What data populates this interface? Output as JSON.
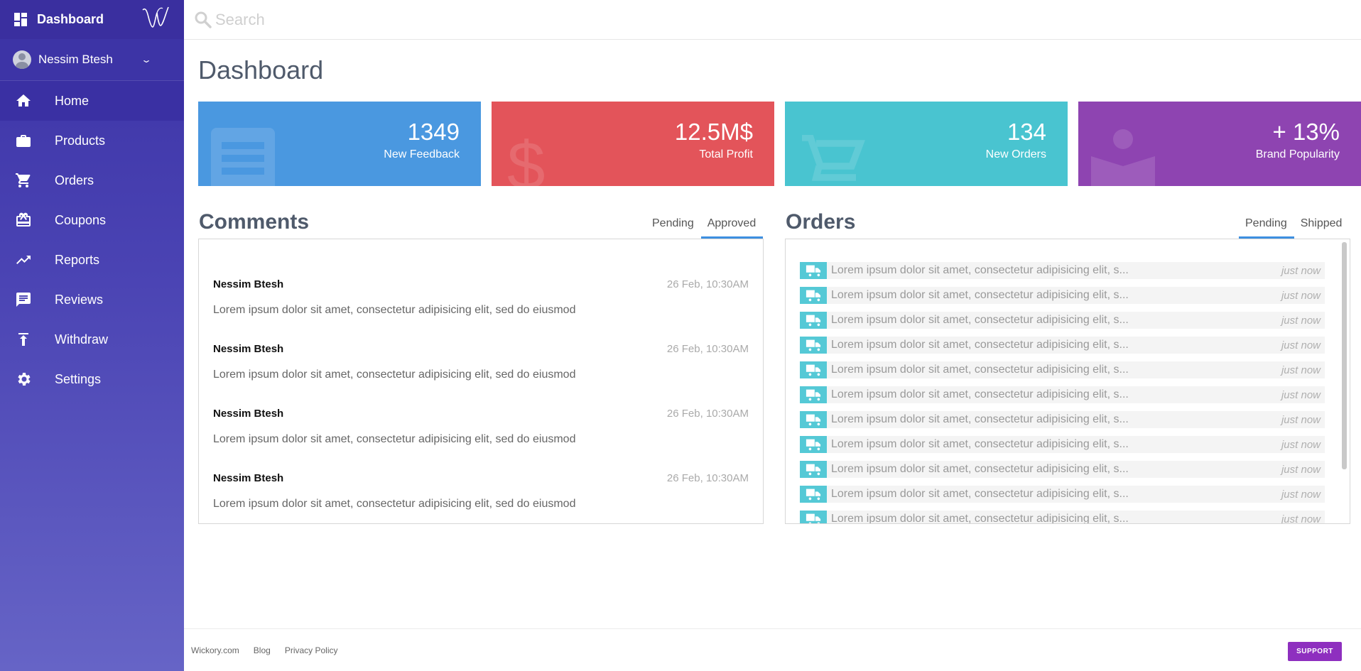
{
  "sidebar": {
    "brand": "Dashboard",
    "user_name": "Nessim Btesh",
    "items": [
      {
        "label": "Home",
        "icon": "home-icon",
        "active": true
      },
      {
        "label": "Products",
        "icon": "briefcase-icon"
      },
      {
        "label": "Orders",
        "icon": "cart-icon"
      },
      {
        "label": "Coupons",
        "icon": "gift-icon"
      },
      {
        "label": "Reports",
        "icon": "trending-icon"
      },
      {
        "label": "Reviews",
        "icon": "chat-icon"
      },
      {
        "label": "Withdraw",
        "icon": "upload-icon"
      },
      {
        "label": "Settings",
        "icon": "gear-icon"
      }
    ]
  },
  "search": {
    "placeholder": "Search"
  },
  "page": {
    "title": "Dashboard"
  },
  "cards": [
    {
      "value": "1349",
      "label": "New Feedback",
      "color": "#4a98e0",
      "icon": "feedback-icon"
    },
    {
      "value": "12.5M$",
      "label": "Total Profit",
      "color": "#e3545a",
      "icon": "dollar-icon"
    },
    {
      "value": "134",
      "label": "New Orders",
      "color": "#49c4d0",
      "icon": "cart-icon"
    },
    {
      "value": "+ 13%",
      "label": "Brand Popularity",
      "color": "#8e44b1",
      "icon": "person-icon"
    }
  ],
  "comments": {
    "title": "Comments",
    "tabs": [
      "Pending",
      "Approved"
    ],
    "active_tab": "Approved",
    "items": [
      {
        "author": "Nessim Btesh",
        "date": "26 Feb, 10:30AM",
        "text": "Lorem ipsum dolor sit amet, consectetur adipisicing elit, sed do eiusmod"
      },
      {
        "author": "Nessim Btesh",
        "date": "26 Feb, 10:30AM",
        "text": "Lorem ipsum dolor sit amet, consectetur adipisicing elit, sed do eiusmod"
      },
      {
        "author": "Nessim Btesh",
        "date": "26 Feb, 10:30AM",
        "text": "Lorem ipsum dolor sit amet, consectetur adipisicing elit, sed do eiusmod"
      },
      {
        "author": "Nessim Btesh",
        "date": "26 Feb, 10:30AM",
        "text": "Lorem ipsum dolor sit amet, consectetur adipisicing elit, sed do eiusmod"
      }
    ]
  },
  "orders": {
    "title": "Orders",
    "tabs": [
      "Pending",
      "Shipped"
    ],
    "active_tab": "Pending",
    "items": [
      {
        "text": "Lorem ipsum dolor sit amet, consectetur adipisicing elit, s...",
        "time": "just now"
      },
      {
        "text": "Lorem ipsum dolor sit amet, consectetur adipisicing elit, s...",
        "time": "just now"
      },
      {
        "text": "Lorem ipsum dolor sit amet, consectetur adipisicing elit, s...",
        "time": "just now"
      },
      {
        "text": "Lorem ipsum dolor sit amet, consectetur adipisicing elit, s...",
        "time": "just now"
      },
      {
        "text": "Lorem ipsum dolor sit amet, consectetur adipisicing elit, s...",
        "time": "just now"
      },
      {
        "text": "Lorem ipsum dolor sit amet, consectetur adipisicing elit, s...",
        "time": "just now"
      },
      {
        "text": "Lorem ipsum dolor sit amet, consectetur adipisicing elit, s...",
        "time": "just now"
      },
      {
        "text": "Lorem ipsum dolor sit amet, consectetur adipisicing elit, s...",
        "time": "just now"
      },
      {
        "text": "Lorem ipsum dolor sit amet, consectetur adipisicing elit, s...",
        "time": "just now"
      },
      {
        "text": "Lorem ipsum dolor sit amet, consectetur adipisicing elit, s...",
        "time": "just now"
      },
      {
        "text": "Lorem ipsum dolor sit amet, consectetur adipisicing elit, s...",
        "time": "just now"
      }
    ]
  },
  "footer": {
    "links": [
      "Wickory.com",
      "Blog",
      "Privacy Policy"
    ],
    "support_label": "SUPPORT"
  }
}
